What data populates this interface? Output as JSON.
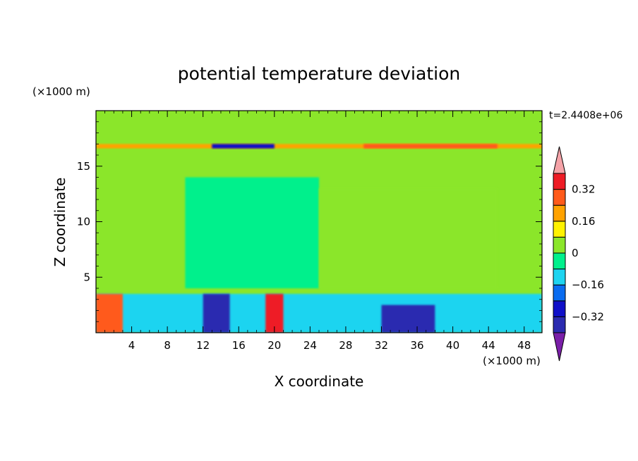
{
  "chart_data": {
    "type": "heatmap",
    "title": "potential temperature deviation",
    "xlabel": "X coordinate",
    "ylabel": "Z coordinate",
    "x_unit": "(×1000 m)",
    "y_unit": "(×1000 m)",
    "time_label": "t=2.4408e+06",
    "xlim": [
      0,
      50
    ],
    "ylim": [
      0,
      20
    ],
    "x_ticks": [
      4,
      8,
      12,
      16,
      20,
      24,
      28,
      32,
      36,
      40,
      44,
      48
    ],
    "x_ticklabels": [
      "4",
      "8",
      "12",
      "16",
      "20",
      "24",
      "28",
      "32",
      "36",
      "40",
      "44",
      "48"
    ],
    "y_ticks": [
      5,
      10,
      15
    ],
    "y_ticklabels": [
      "5",
      "10",
      "15"
    ],
    "colorbar": {
      "levels": [
        -0.4,
        -0.32,
        -0.24,
        -0.16,
        -0.08,
        0,
        0.08,
        0.16,
        0.24,
        0.32,
        0.4
      ],
      "labels": [
        {
          "value": 0.32,
          "text": "0.32"
        },
        {
          "value": 0.16,
          "text": "0.16"
        },
        {
          "value": 0,
          "text": "0"
        },
        {
          "value": -0.16,
          "text": "−0.16"
        },
        {
          "value": -0.32,
          "text": "−0.32"
        }
      ],
      "colors": [
        "#7a1fa8",
        "#2b2bb0",
        "#1010c8",
        "#0a6cf0",
        "#1ed4f0",
        "#00f08c",
        "#8be62a",
        "#fff200",
        "#ffa200",
        "#ff5a1a",
        "#ee1c25",
        "#f5a3a8"
      ]
    },
    "regions": [
      {
        "x": [
          0,
          50
        ],
        "y": [
          0,
          20
        ],
        "level": 0.02
      },
      {
        "x": [
          10,
          25
        ],
        "y": [
          4,
          14
        ],
        "level": -0.03
      },
      {
        "x": [
          25,
          45
        ],
        "y": [
          4,
          13
        ],
        "level": 0.03
      },
      {
        "x": [
          0,
          50
        ],
        "y": [
          16.6,
          17.0
        ],
        "level": 0.2
      },
      {
        "x": [
          13,
          20
        ],
        "y": [
          16.6,
          17.0
        ],
        "level": -0.25
      },
      {
        "x": [
          30,
          45
        ],
        "y": [
          16.6,
          17.0
        ],
        "level": 0.3
      },
      {
        "x": [
          0,
          50
        ],
        "y": [
          0,
          3.5
        ],
        "level": -0.1
      },
      {
        "x": [
          0,
          3
        ],
        "y": [
          0,
          3.5
        ],
        "level": 0.3
      },
      {
        "x": [
          12,
          15
        ],
        "y": [
          0,
          3.5
        ],
        "level": -0.4
      },
      {
        "x": [
          19,
          21
        ],
        "y": [
          0,
          3.5
        ],
        "level": 0.35
      },
      {
        "x": [
          32,
          38
        ],
        "y": [
          0,
          2.5
        ],
        "level": -0.4
      }
    ]
  }
}
